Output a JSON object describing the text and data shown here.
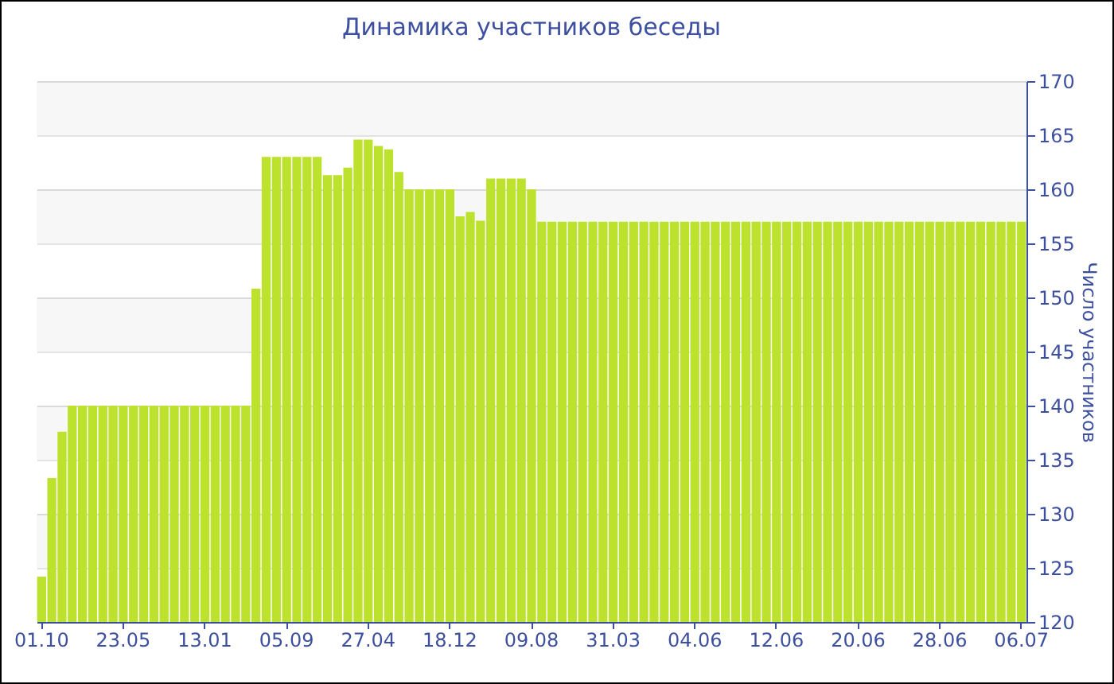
{
  "chart_data": {
    "type": "bar",
    "title": "Динамика участников беседы",
    "ylabel": "Число участников",
    "categories": [
      "01.10",
      null,
      null,
      null,
      null,
      null,
      null,
      null,
      "23.05",
      null,
      null,
      null,
      null,
      null,
      null,
      null,
      "13.01",
      null,
      null,
      null,
      null,
      null,
      null,
      null,
      "05.09",
      null,
      null,
      null,
      null,
      null,
      null,
      null,
      "27.04",
      null,
      null,
      null,
      null,
      null,
      null,
      null,
      "18.12",
      null,
      null,
      null,
      null,
      null,
      null,
      null,
      "09.08",
      null,
      null,
      null,
      null,
      null,
      null,
      null,
      "31.03",
      null,
      null,
      null,
      null,
      null,
      null,
      null,
      "04.06",
      null,
      null,
      null,
      null,
      null,
      null,
      null,
      "12.06",
      null,
      null,
      null,
      null,
      null,
      null,
      null,
      "20.06",
      null,
      null,
      null,
      null,
      null,
      null,
      null,
      "28.06",
      null,
      null,
      null,
      null,
      null,
      null,
      null,
      "06.07"
    ],
    "values": [
      124.2,
      133.3,
      137.6,
      140,
      140,
      140,
      140,
      140,
      140,
      140,
      140,
      140,
      140,
      140,
      140,
      140,
      140,
      140,
      140,
      140,
      140,
      150.8,
      163,
      163,
      163,
      163,
      163,
      163,
      161.3,
      161.3,
      162,
      164.6,
      164.6,
      164,
      163.7,
      161.6,
      160,
      160,
      160,
      160,
      160,
      157.5,
      157.9,
      157.1,
      161,
      161,
      161,
      161,
      160,
      157,
      157,
      157,
      157,
      157,
      157,
      157,
      157,
      157,
      157,
      157,
      157,
      157,
      157,
      157,
      157,
      157,
      157,
      157,
      157,
      157,
      157,
      157,
      157,
      157,
      157,
      157,
      157,
      157,
      157,
      157,
      157,
      157,
      157,
      157,
      157,
      157,
      157,
      157,
      157,
      157,
      157,
      157,
      157,
      157,
      157,
      157,
      157
    ],
    "color": "#bde22e",
    "ylim": [
      120,
      170
    ],
    "yticks": [
      120,
      125,
      130,
      135,
      140,
      145,
      150,
      155,
      160,
      165,
      170
    ],
    "grid": true
  }
}
